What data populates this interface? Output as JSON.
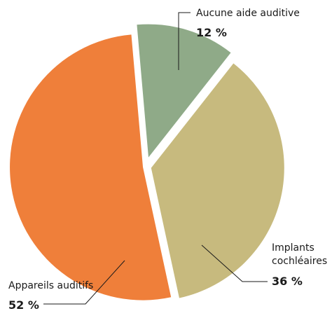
{
  "chart_data": {
    "type": "pie",
    "slices": [
      {
        "label": "Aucune aide auditive",
        "value": 12,
        "value_label": "12 %",
        "color": "#8faa88"
      },
      {
        "label": "Implants cochléaires",
        "label_lines": [
          "Implants",
          "cochléaires"
        ],
        "value": 36,
        "value_label": "36 %",
        "color": "#c7ba7e"
      },
      {
        "label": "Appareils auditifs",
        "value": 52,
        "value_label": "52 %",
        "color": "#ef7f3a"
      }
    ],
    "legend": "none"
  }
}
